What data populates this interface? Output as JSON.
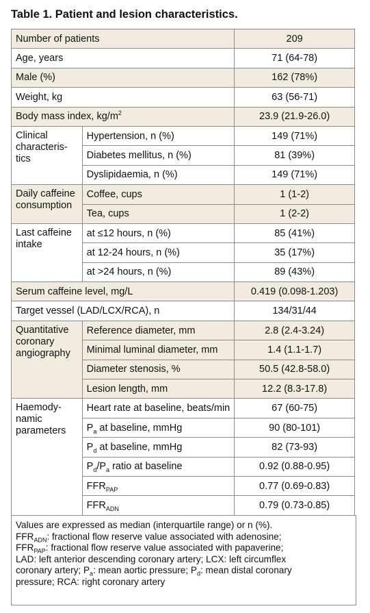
{
  "title": "Table 1. Patient and lesion characteristics.",
  "table": {
    "groups": [
      {
        "label": "Number of patients",
        "value": "209"
      },
      {
        "label": "Age, years",
        "value": "71 (64-78)"
      },
      {
        "label": "Male (%)",
        "value": "162 (78%)"
      },
      {
        "label": "Weight, kg",
        "value": "63 (56-71)"
      },
      {
        "label": [
          "Body mass index, kg/m",
          {
            "sup": "2"
          }
        ],
        "value": "23.9 (21.9-26.0)"
      },
      {
        "label": "Clinical\ncharacteris-\ntics",
        "rows": [
          {
            "label": "Hypertension, n (%)",
            "value": "149 (71%)"
          },
          {
            "label": "Diabetes mellitus, n (%)",
            "value": "81 (39%)"
          },
          {
            "label": "Dyslipidaemia, n (%)",
            "value": "149 (71%)"
          }
        ]
      },
      {
        "label": "Daily caffeine\nconsumption",
        "rows": [
          {
            "label": "Coffee, cups",
            "value": "1 (1-2)"
          },
          {
            "label": "Tea, cups",
            "value": "1 (2-2)"
          }
        ]
      },
      {
        "label": "Last caffeine\nintake",
        "rows": [
          {
            "label": "at ≤12 hours, n (%)",
            "value": "85 (41%)"
          },
          {
            "label": "at 12-24 hours, n (%)",
            "value": "35 (17%)"
          },
          {
            "label": "at >24 hours, n (%)",
            "value": "89 (43%)"
          }
        ]
      },
      {
        "label": "Serum caffeine level, mg/L",
        "value": "0.419 (0.098-1.203)"
      },
      {
        "label": "Target vessel (LAD/LCX/RCA), n",
        "value": "134/31/44"
      },
      {
        "label": "Quantitative\ncoronary\nangiography",
        "rows": [
          {
            "label": "Reference diameter, mm",
            "value": "2.8 (2.4-3.24)"
          },
          {
            "label": "Minimal luminal diameter, mm",
            "value": "1.4 (1.1-1.7)"
          },
          {
            "label": "Diameter stenosis, %",
            "value": "50.5 (42.8-58.0)"
          },
          {
            "label": "Lesion length, mm",
            "value": "12.2 (8.3-17.8)"
          }
        ]
      },
      {
        "label": "Haemody-\nnamic\nparameters",
        "rows": [
          {
            "label": "Heart rate at baseline, beats/min",
            "value": "67 (60-75)"
          },
          {
            "label": [
              "P",
              {
                "sub": "a"
              },
              " at baseline, mmHg"
            ],
            "value": "90 (80-101)"
          },
          {
            "label": [
              "P",
              {
                "sub": "d"
              },
              " at baseline, mmHg"
            ],
            "value": "82 (73-93)"
          },
          {
            "label": [
              "P",
              {
                "sub": "d"
              },
              "/P",
              {
                "sub": "a"
              },
              " ratio at baseline"
            ],
            "value": "0.92 (0.88-0.95)"
          },
          {
            "label": [
              "FFR",
              {
                "sub": "PAP"
              }
            ],
            "value": "0.77 (0.69-0.83)"
          },
          {
            "label": [
              "FFR",
              {
                "sub": "ADN"
              }
            ],
            "value": "0.79 (0.73-0.85)"
          }
        ]
      }
    ]
  },
  "footnote": [
    "Values are expressed as median (interquartile range) or n (%).",
    [
      "FFR",
      {
        "sub": "ADN"
      },
      ": fractional flow reserve value associated with adenosine;"
    ],
    [
      "FFR",
      {
        "sub": "PAP"
      },
      ": fractional flow reserve value associated with papaverine;"
    ],
    "LAD: left anterior descending coronary artery; LCX: left circumflex",
    [
      "coronary artery; P",
      {
        "sub": "a"
      },
      ": mean aortic pressure; P",
      {
        "sub": "d"
      },
      ": mean distal coronary"
    ],
    "pressure; RCA: right coronary artery"
  ]
}
